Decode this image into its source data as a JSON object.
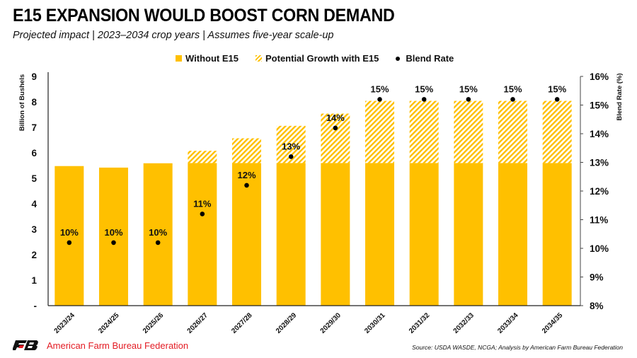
{
  "header": {
    "title": "E15 EXPANSION WOULD BOOST CORN DEMAND",
    "subtitle": "Projected impact | 2023–2034 crop years | Assumes five-year scale-up"
  },
  "legend": {
    "items": [
      {
        "label": "Without E15",
        "icon": "solid-square-swatch"
      },
      {
        "label": "Potential Growth with E15",
        "icon": "hatched-swatch"
      },
      {
        "label": "Blend Rate",
        "icon": "dot-marker"
      }
    ]
  },
  "colors": {
    "base_bar": "#FFC000",
    "hatch": "#FFC000",
    "dot": "#000000",
    "brand_red": "#E31B23"
  },
  "footer": {
    "org_name": "American Farm Bureau Federation",
    "logo_text": "FB",
    "source": "Source: USDA WASDE, NCGA; Analysis by American Farm Bureau Federation"
  },
  "chart_data": {
    "type": "bar",
    "stacked": true,
    "title": "E15 EXPANSION WOULD BOOST CORN DEMAND",
    "subtitle": "Projected impact | 2023–2034 crop years | Assumes five-year scale-up",
    "xlabel": "",
    "ylabel": "Billion of Bushels",
    "y2label": "Blend Rate (%)",
    "ylim": [
      0,
      9
    ],
    "y2lim": [
      8,
      16
    ],
    "yticks": [
      "-",
      "1",
      "2",
      "3",
      "4",
      "5",
      "6",
      "7",
      "8",
      "9"
    ],
    "y2ticks": [
      "8%",
      "9%",
      "10%",
      "11%",
      "12%",
      "13%",
      "14%",
      "15%",
      "16%"
    ],
    "grid": false,
    "legend_position": "top",
    "categories": [
      "2023/24",
      "2024/25",
      "2025/26",
      "2026/27",
      "2027/28",
      "2028/29",
      "2029/30",
      "2030/31",
      "2031/32",
      "2032/33",
      "2033/34",
      "2034/35"
    ],
    "series": [
      {
        "name": "Without E15",
        "axis": "left",
        "style": "solid",
        "values": [
          5.48,
          5.42,
          5.59,
          5.6,
          5.6,
          5.6,
          5.6,
          5.6,
          5.6,
          5.6,
          5.6,
          5.6
        ]
      },
      {
        "name": "Potential Growth with E15",
        "axis": "left",
        "style": "hatched",
        "values": [
          0,
          0,
          0,
          0.48,
          0.97,
          1.46,
          1.94,
          2.44,
          2.44,
          2.44,
          2.44,
          2.44
        ]
      },
      {
        "name": "Blend Rate",
        "axis": "right",
        "style": "dot",
        "values": [
          10.2,
          10.2,
          10.2,
          11.2,
          12.2,
          13.2,
          14.2,
          15.2,
          15.2,
          15.2,
          15.2,
          15.2
        ],
        "labels": [
          "10%",
          "10%",
          "10%",
          "11%",
          "12%",
          "13%",
          "14%",
          "15%",
          "15%",
          "15%",
          "15%",
          "15%"
        ]
      }
    ]
  }
}
